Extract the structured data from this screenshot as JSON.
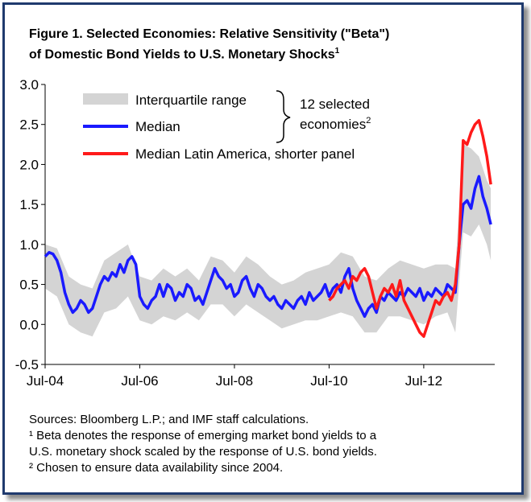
{
  "title": {
    "line1": "Figure 1. Selected Economies: Relative Sensitivity (\"Beta\")",
    "line2": "of Domestic Bond Yields to U.S. Monetary Shocks",
    "line2_sup": "1"
  },
  "notes": {
    "sources": "Sources: Bloomberg L.P.; and IMF staff calculations.",
    "note1_a": "¹ Beta denotes the response of emerging market bond yields to a",
    "note1_b": "U.S. monetary shock scaled by the response of U.S. bond yields.",
    "note2": "² Chosen to ensure data availability since 2004."
  },
  "chart_data": {
    "type": "line",
    "ylim": [
      -0.5,
      3.0
    ],
    "yticks": [
      "3.0",
      "2.5",
      "2.0",
      "1.5",
      "1.0",
      "0.5",
      "0.0",
      "-0.5"
    ],
    "xlim": [
      "2004-07",
      "2014-01"
    ],
    "xticks": [
      "Jul-04",
      "Jul-06",
      "Jul-08",
      "Jul-10",
      "Jul-12"
    ],
    "legend": {
      "iqr": "Interquartile range",
      "median": "Median",
      "latam": "Median Latin America, shorter panel",
      "group_label_1": "12 selected",
      "group_label_2": "economies",
      "group_label_sup": "2"
    },
    "colors": {
      "iqr": "#d4d4d4",
      "median": "#1a1aff",
      "latam": "#ff1a1a"
    },
    "series": [
      {
        "name": "Median",
        "points": [
          [
            "2004-07",
            0.85
          ],
          [
            "2004-08",
            0.9
          ],
          [
            "2004-09",
            0.88
          ],
          [
            "2004-10",
            0.8
          ],
          [
            "2004-11",
            0.65
          ],
          [
            "2004-12",
            0.4
          ],
          [
            "2005-01",
            0.25
          ],
          [
            "2005-02",
            0.15
          ],
          [
            "2005-03",
            0.2
          ],
          [
            "2005-04",
            0.3
          ],
          [
            "2005-05",
            0.25
          ],
          [
            "2005-06",
            0.15
          ],
          [
            "2005-07",
            0.2
          ],
          [
            "2005-08",
            0.35
          ],
          [
            "2005-09",
            0.5
          ],
          [
            "2005-10",
            0.6
          ],
          [
            "2005-11",
            0.55
          ],
          [
            "2005-12",
            0.65
          ],
          [
            "2006-01",
            0.6
          ],
          [
            "2006-02",
            0.75
          ],
          [
            "2006-03",
            0.65
          ],
          [
            "2006-04",
            0.8
          ],
          [
            "2006-05",
            0.85
          ],
          [
            "2006-06",
            0.75
          ],
          [
            "2006-07",
            0.35
          ],
          [
            "2006-08",
            0.25
          ],
          [
            "2006-09",
            0.2
          ],
          [
            "2006-10",
            0.3
          ],
          [
            "2006-11",
            0.35
          ],
          [
            "2006-12",
            0.5
          ],
          [
            "2007-01",
            0.35
          ],
          [
            "2007-02",
            0.5
          ],
          [
            "2007-03",
            0.45
          ],
          [
            "2007-04",
            0.3
          ],
          [
            "2007-05",
            0.4
          ],
          [
            "2007-06",
            0.35
          ],
          [
            "2007-07",
            0.5
          ],
          [
            "2007-08",
            0.45
          ],
          [
            "2007-09",
            0.3
          ],
          [
            "2007-10",
            0.35
          ],
          [
            "2007-11",
            0.25
          ],
          [
            "2007-12",
            0.4
          ],
          [
            "2008-01",
            0.55
          ],
          [
            "2008-02",
            0.7
          ],
          [
            "2008-03",
            0.6
          ],
          [
            "2008-04",
            0.55
          ],
          [
            "2008-05",
            0.45
          ],
          [
            "2008-06",
            0.5
          ],
          [
            "2008-07",
            0.35
          ],
          [
            "2008-08",
            0.4
          ],
          [
            "2008-09",
            0.55
          ],
          [
            "2008-10",
            0.6
          ],
          [
            "2008-11",
            0.45
          ],
          [
            "2008-12",
            0.35
          ],
          [
            "2009-01",
            0.5
          ],
          [
            "2009-02",
            0.45
          ],
          [
            "2009-03",
            0.35
          ],
          [
            "2009-04",
            0.3
          ],
          [
            "2009-05",
            0.35
          ],
          [
            "2009-06",
            0.25
          ],
          [
            "2009-07",
            0.2
          ],
          [
            "2009-08",
            0.3
          ],
          [
            "2009-09",
            0.25
          ],
          [
            "2009-10",
            0.2
          ],
          [
            "2009-11",
            0.3
          ],
          [
            "2009-12",
            0.35
          ],
          [
            "2010-01",
            0.25
          ],
          [
            "2010-02",
            0.4
          ],
          [
            "2010-03",
            0.3
          ],
          [
            "2010-04",
            0.35
          ],
          [
            "2010-05",
            0.4
          ],
          [
            "2010-06",
            0.5
          ],
          [
            "2010-07",
            0.35
          ],
          [
            "2010-08",
            0.45
          ],
          [
            "2010-09",
            0.5
          ],
          [
            "2010-10",
            0.4
          ],
          [
            "2010-11",
            0.6
          ],
          [
            "2010-12",
            0.7
          ],
          [
            "2011-01",
            0.45
          ],
          [
            "2011-02",
            0.3
          ],
          [
            "2011-03",
            0.2
          ],
          [
            "2011-04",
            0.1
          ],
          [
            "2011-05",
            0.2
          ],
          [
            "2011-06",
            0.25
          ],
          [
            "2011-07",
            0.15
          ],
          [
            "2011-08",
            0.35
          ],
          [
            "2011-09",
            0.3
          ],
          [
            "2011-10",
            0.4
          ],
          [
            "2011-11",
            0.35
          ],
          [
            "2011-12",
            0.3
          ],
          [
            "2012-01",
            0.4
          ],
          [
            "2012-02",
            0.35
          ],
          [
            "2012-03",
            0.45
          ],
          [
            "2012-04",
            0.4
          ],
          [
            "2012-05",
            0.35
          ],
          [
            "2012-06",
            0.45
          ],
          [
            "2012-07",
            0.3
          ],
          [
            "2012-08",
            0.4
          ],
          [
            "2012-09",
            0.35
          ],
          [
            "2012-10",
            0.45
          ],
          [
            "2012-11",
            0.4
          ],
          [
            "2012-12",
            0.35
          ],
          [
            "2013-01",
            0.5
          ],
          [
            "2013-02",
            0.45
          ],
          [
            "2013-03",
            0.4
          ],
          [
            "2013-04",
            1.0
          ],
          [
            "2013-05",
            1.5
          ],
          [
            "2013-06",
            1.55
          ],
          [
            "2013-07",
            1.45
          ],
          [
            "2013-08",
            1.7
          ],
          [
            "2013-09",
            1.85
          ],
          [
            "2013-10",
            1.6
          ],
          [
            "2013-11",
            1.45
          ],
          [
            "2013-12",
            1.25
          ]
        ]
      },
      {
        "name": "Median Latin America, shorter panel",
        "points": [
          [
            "2010-07",
            0.3
          ],
          [
            "2010-08",
            0.35
          ],
          [
            "2010-09",
            0.45
          ],
          [
            "2010-10",
            0.5
          ],
          [
            "2010-11",
            0.55
          ],
          [
            "2010-12",
            0.45
          ],
          [
            "2011-01",
            0.6
          ],
          [
            "2011-02",
            0.55
          ],
          [
            "2011-03",
            0.65
          ],
          [
            "2011-04",
            0.7
          ],
          [
            "2011-05",
            0.6
          ],
          [
            "2011-06",
            0.4
          ],
          [
            "2011-07",
            0.2
          ],
          [
            "2011-08",
            0.35
          ],
          [
            "2011-09",
            0.45
          ],
          [
            "2011-10",
            0.4
          ],
          [
            "2011-11",
            0.5
          ],
          [
            "2011-12",
            0.35
          ],
          [
            "2012-01",
            0.55
          ],
          [
            "2012-02",
            0.3
          ],
          [
            "2012-03",
            0.2
          ],
          [
            "2012-04",
            0.1
          ],
          [
            "2012-05",
            0.0
          ],
          [
            "2012-06",
            -0.1
          ],
          [
            "2012-07",
            -0.15
          ],
          [
            "2012-08",
            0.0
          ],
          [
            "2012-09",
            0.15
          ],
          [
            "2012-10",
            0.3
          ],
          [
            "2012-11",
            0.25
          ],
          [
            "2012-12",
            0.35
          ],
          [
            "2013-01",
            0.4
          ],
          [
            "2013-02",
            0.3
          ],
          [
            "2013-03",
            0.5
          ],
          [
            "2013-04",
            1.0
          ],
          [
            "2013-05",
            2.3
          ],
          [
            "2013-06",
            2.25
          ],
          [
            "2013-07",
            2.4
          ],
          [
            "2013-08",
            2.5
          ],
          [
            "2013-09",
            2.55
          ],
          [
            "2013-10",
            2.35
          ],
          [
            "2013-11",
            2.1
          ],
          [
            "2013-12",
            1.75
          ]
        ]
      }
    ],
    "iqr_band": {
      "name": "Interquartile range",
      "points": [
        [
          "2004-07",
          0.45,
          1.0
        ],
        [
          "2004-10",
          0.35,
          0.95
        ],
        [
          "2005-01",
          0.0,
          0.6
        ],
        [
          "2005-04",
          -0.1,
          0.5
        ],
        [
          "2005-07",
          -0.15,
          0.45
        ],
        [
          "2005-10",
          0.15,
          0.8
        ],
        [
          "2006-01",
          0.2,
          0.9
        ],
        [
          "2006-04",
          0.35,
          1.0
        ],
        [
          "2006-07",
          0.05,
          0.6
        ],
        [
          "2006-10",
          0.0,
          0.55
        ],
        [
          "2007-01",
          0.1,
          0.7
        ],
        [
          "2007-04",
          0.05,
          0.6
        ],
        [
          "2007-07",
          0.15,
          0.7
        ],
        [
          "2007-10",
          0.05,
          0.55
        ],
        [
          "2008-01",
          0.25,
          0.85
        ],
        [
          "2008-04",
          0.25,
          0.8
        ],
        [
          "2008-07",
          0.1,
          0.65
        ],
        [
          "2008-10",
          0.25,
          0.85
        ],
        [
          "2009-01",
          0.15,
          0.75
        ],
        [
          "2009-04",
          0.05,
          0.6
        ],
        [
          "2009-07",
          -0.05,
          0.5
        ],
        [
          "2009-10",
          0.0,
          0.55
        ],
        [
          "2010-01",
          0.05,
          0.65
        ],
        [
          "2010-04",
          0.05,
          0.7
        ],
        [
          "2010-07",
          0.1,
          0.75
        ],
        [
          "2010-10",
          0.15,
          0.9
        ],
        [
          "2011-01",
          0.1,
          0.85
        ],
        [
          "2011-04",
          -0.1,
          0.6
        ],
        [
          "2011-07",
          -0.1,
          0.55
        ],
        [
          "2011-10",
          0.1,
          0.7
        ],
        [
          "2012-01",
          0.1,
          0.8
        ],
        [
          "2012-04",
          0.05,
          0.75
        ],
        [
          "2012-07",
          0.0,
          0.7
        ],
        [
          "2012-10",
          0.1,
          0.75
        ],
        [
          "2013-01",
          0.15,
          0.75
        ],
        [
          "2013-03",
          -0.1,
          0.7
        ],
        [
          "2013-05",
          1.15,
          2.25
        ],
        [
          "2013-07",
          1.1,
          2.2
        ],
        [
          "2013-09",
          1.25,
          2.1
        ],
        [
          "2013-11",
          1.0,
          1.8
        ],
        [
          "2013-12",
          0.8,
          1.7
        ]
      ]
    }
  }
}
